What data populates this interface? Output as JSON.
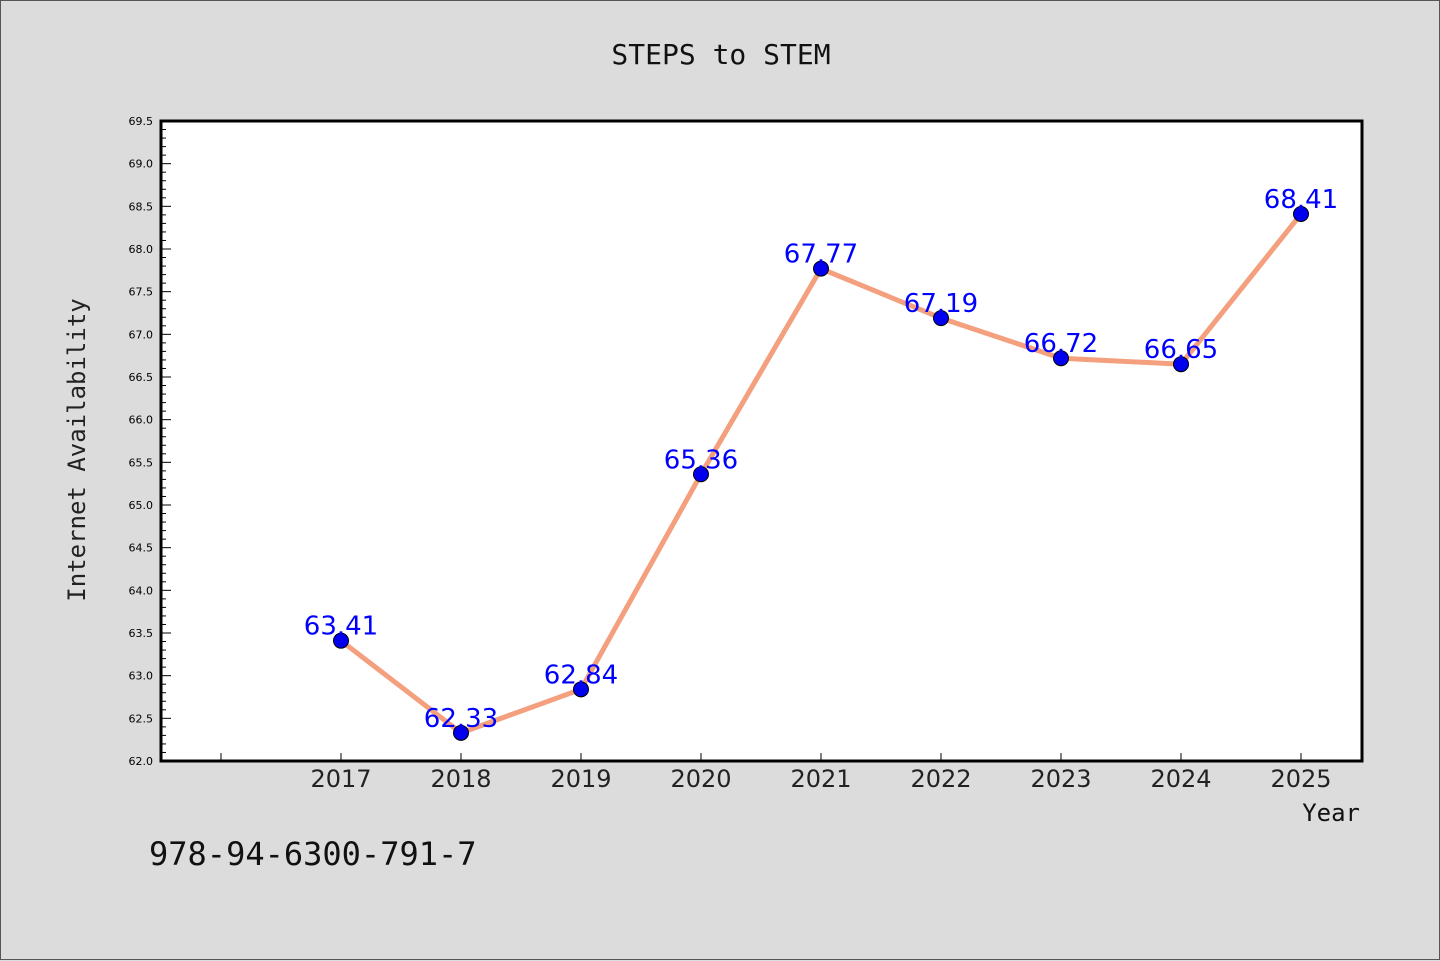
{
  "chart_data": {
    "type": "line",
    "title": "STEPS to STEM",
    "xlabel": "Year",
    "ylabel": "Internet Availability",
    "categories": [
      "2017",
      "2018",
      "2019",
      "2020",
      "2021",
      "2022",
      "2023",
      "2024",
      "2025"
    ],
    "series": [
      {
        "values": [
          63.41,
          62.33,
          62.84,
          65.36,
          67.77,
          67.19,
          66.72,
          66.65,
          68.41
        ],
        "line_color": "#f4a07e",
        "marker_color": "#0000ee"
      }
    ],
    "data_labels": [
      "63.41",
      "62.33",
      "62.84",
      "65.36",
      "67.77",
      "67.19",
      "66.72",
      "66.65",
      "68.41"
    ],
    "data_label_color": "#0000ff",
    "ylim": [
      62.0,
      69.5
    ],
    "yticks": [
      "62.0",
      "62.5",
      "63.0",
      "63.5",
      "64.0",
      "64.5",
      "65.0",
      "65.5",
      "66.0",
      "66.5",
      "67.0",
      "67.5",
      "68.0",
      "68.5",
      "69.0",
      "69.5"
    ],
    "grid": false,
    "legend": "none"
  },
  "footer": {
    "isbn": "978-94-6300-791-7"
  }
}
